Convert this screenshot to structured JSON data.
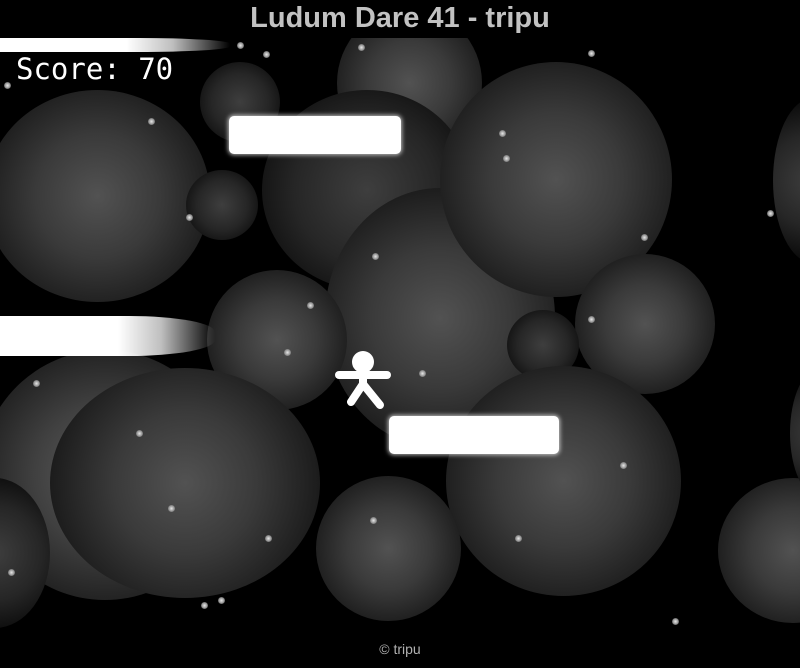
{
  "page": {
    "title": "Ludum Dare 41 - tripu",
    "footer": "© tripu"
  },
  "hud": {
    "score_label": "Score: 70"
  },
  "colors": {
    "background": "#000000",
    "title": "#c2c2c2",
    "platform": "#ffffff",
    "bubble": "#4a4a4a",
    "score_text": "#ffffff",
    "footer_text": "#b0b0b0"
  },
  "icons": {
    "player": "stick-figure-icon"
  }
}
